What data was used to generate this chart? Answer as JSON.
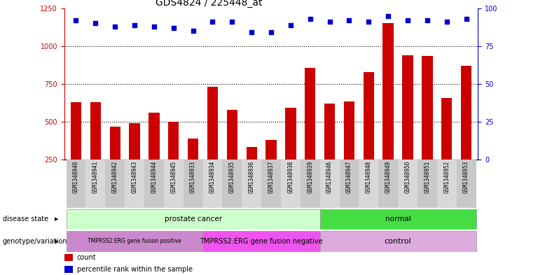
{
  "title": "GDS4824 / 225448_at",
  "samples": [
    "GSM1348940",
    "GSM1348941",
    "GSM1348942",
    "GSM1348943",
    "GSM1348944",
    "GSM1348945",
    "GSM1348933",
    "GSM1348934",
    "GSM1348935",
    "GSM1348936",
    "GSM1348937",
    "GSM1348938",
    "GSM1348939",
    "GSM1348946",
    "GSM1348947",
    "GSM1348948",
    "GSM1348949",
    "GSM1348950",
    "GSM1348951",
    "GSM1348952",
    "GSM1348953"
  ],
  "counts": [
    630,
    630,
    465,
    490,
    560,
    500,
    390,
    730,
    580,
    335,
    380,
    590,
    855,
    620,
    635,
    830,
    1150,
    940,
    935,
    655,
    870
  ],
  "percentile_ranks": [
    92,
    90,
    88,
    89,
    88,
    87,
    85,
    91,
    91,
    84,
    84,
    89,
    93,
    91,
    92,
    91,
    95,
    92,
    92,
    91,
    93
  ],
  "bar_color": "#cc0000",
  "dot_color": "#0000cc",
  "ylim_left": [
    250,
    1250
  ],
  "ylim_right": [
    0,
    100
  ],
  "yticks_left": [
    250,
    500,
    750,
    1000,
    1250
  ],
  "yticks_right": [
    0,
    25,
    50,
    75,
    100
  ],
  "grid_values": [
    500,
    750,
    1000
  ],
  "disease_state_groups": [
    {
      "label": "prostate cancer",
      "start": 0,
      "end": 13,
      "color": "#ccffcc"
    },
    {
      "label": "normal",
      "start": 13,
      "end": 21,
      "color": "#44dd44"
    }
  ],
  "genotype_groups": [
    {
      "label": "TMPRSS2:ERG gene fusion positive",
      "start": 0,
      "end": 7,
      "color": "#cc88cc",
      "fontsize": 5.5
    },
    {
      "label": "TMPRSS2:ERG gene fusion negative",
      "start": 7,
      "end": 13,
      "color": "#ee55ee",
      "fontsize": 7
    },
    {
      "label": "control",
      "start": 13,
      "end": 21,
      "color": "#ddaadd",
      "fontsize": 8
    }
  ],
  "row_labels": [
    "disease state",
    "genotype/variation"
  ],
  "legend_items": [
    {
      "color": "#cc0000",
      "label": "count"
    },
    {
      "color": "#0000cc",
      "label": "percentile rank within the sample"
    }
  ],
  "title_fontsize": 10,
  "tick_fontsize": 7,
  "label_fontsize": 7
}
